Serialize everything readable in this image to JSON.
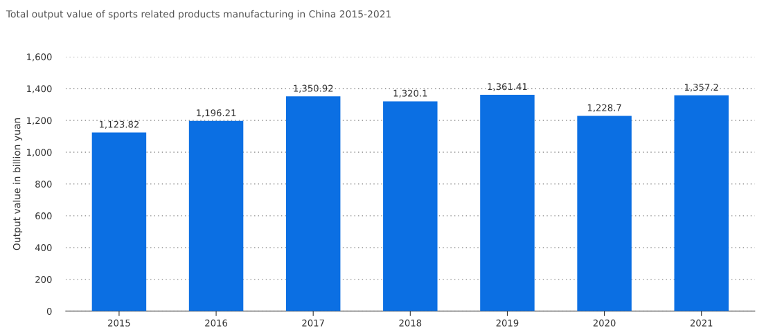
{
  "chart_data": {
    "type": "bar",
    "title": "Total output value of sports related products manufacturing in China 2015-2021",
    "ylabel": "Output value in billion yuan",
    "categories": [
      "2015",
      "2016",
      "2017",
      "2018",
      "2019",
      "2020",
      "2021"
    ],
    "values": [
      1123.82,
      1196.21,
      1350.92,
      1320.1,
      1361.41,
      1228.7,
      1357.2
    ],
    "value_labels": [
      "1,123.82",
      "1,196.21",
      "1,350.92",
      "1,320.1",
      "1,361.41",
      "1,228.7",
      "1,357.2"
    ],
    "color": "#0b6fe3",
    "ylim": [
      0,
      1600
    ],
    "yticks": [
      {
        "value": 0,
        "label": "0"
      },
      {
        "value": 200,
        "label": "200"
      },
      {
        "value": 400,
        "label": "400"
      },
      {
        "value": 600,
        "label": "600"
      },
      {
        "value": 800,
        "label": "800"
      },
      {
        "value": 1000,
        "label": "1,000"
      },
      {
        "value": 1200,
        "label": "1,200"
      },
      {
        "value": 1400,
        "label": "1,400"
      },
      {
        "value": 1600,
        "label": "1,600"
      }
    ],
    "grid": "y"
  }
}
